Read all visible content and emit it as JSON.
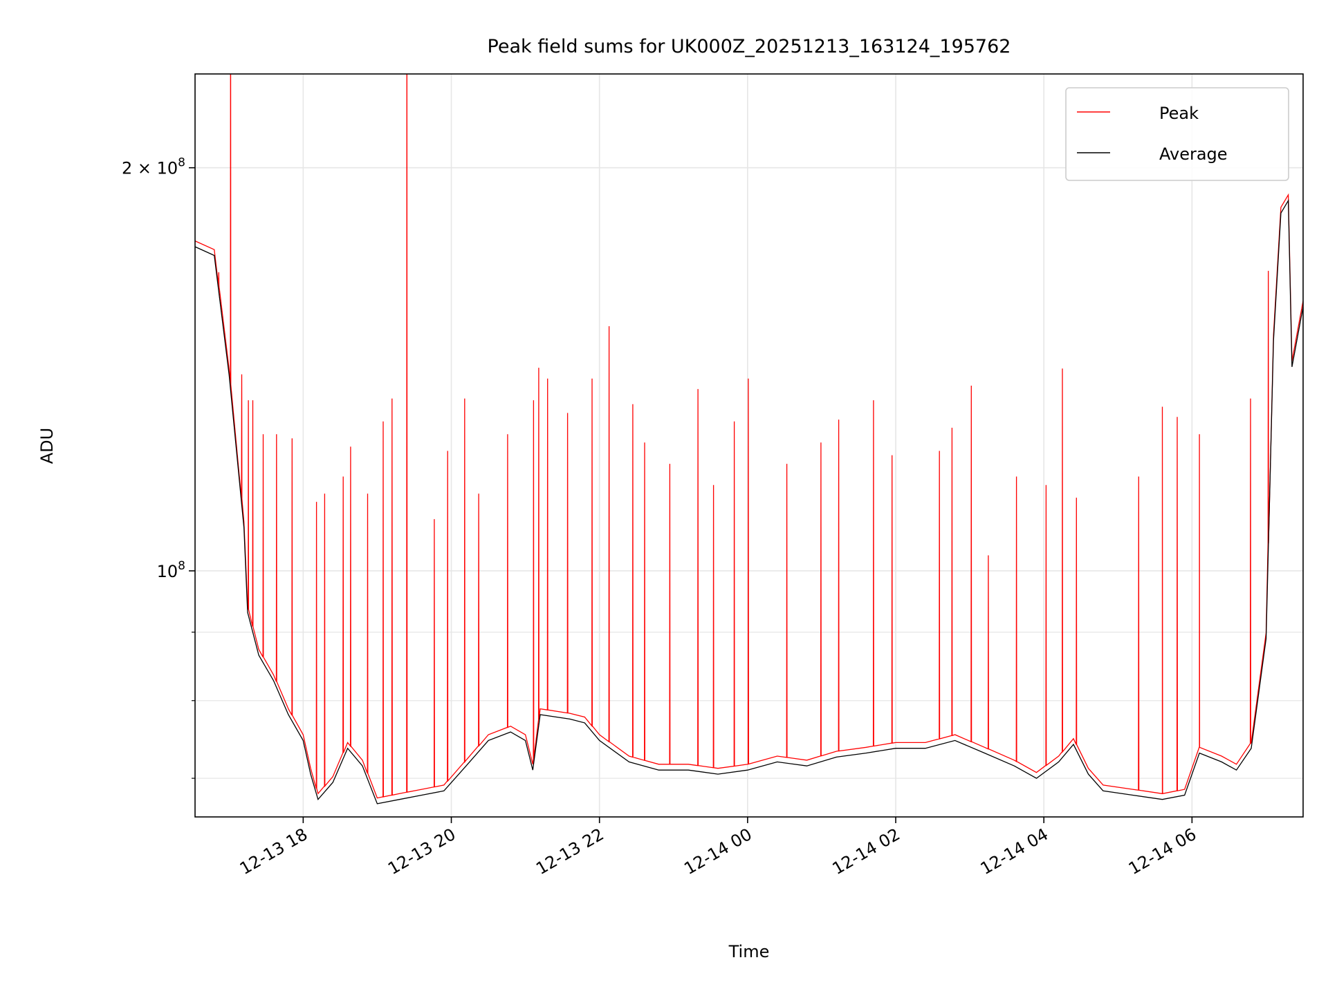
{
  "chart_data": {
    "type": "line",
    "title": "Peak field sums for UK000Z_20251213_163124_195762",
    "xlabel": "Time",
    "ylabel": "ADU",
    "yscale": "log",
    "x_units": "hours since 12-13 00:00",
    "xlim": [
      16.54,
      31.5
    ],
    "ylim": [
      65500000,
      235000000
    ],
    "grid": true,
    "legend_placement": "top-right",
    "x_ticks": [
      {
        "value": 18,
        "label": "12-13 18"
      },
      {
        "value": 20,
        "label": "12-13 20"
      },
      {
        "value": 22,
        "label": "12-13 22"
      },
      {
        "value": 24,
        "label": "12-14 00"
      },
      {
        "value": 26,
        "label": "12-14 02"
      },
      {
        "value": 28,
        "label": "12-14 04"
      },
      {
        "value": 30,
        "label": "12-14 06"
      }
    ],
    "y_major_ticks": [
      {
        "value": 100000000,
        "base": "10",
        "exp": "8",
        "mant": ""
      },
      {
        "value": 200000000,
        "base": "10",
        "exp": "8",
        "mant": "2 × "
      }
    ],
    "y_minor_ticks": [
      70000000,
      80000000,
      90000000
    ],
    "series": [
      {
        "name": "Peak",
        "color": "#ff0000",
        "spikes": [
          [
            16.86,
            167100000
          ],
          [
            17.02,
            300000000
          ],
          [
            17.17,
            140200000
          ],
          [
            17.26,
            134100000
          ],
          [
            17.32,
            134100000
          ],
          [
            17.46,
            126500000
          ],
          [
            17.64,
            126500000
          ],
          [
            17.85,
            125600000
          ],
          [
            18.18,
            112600000
          ],
          [
            18.29,
            114200000
          ],
          [
            18.54,
            117600000
          ],
          [
            18.64,
            123800000
          ],
          [
            18.87,
            114200000
          ],
          [
            19.08,
            129300000
          ],
          [
            19.2,
            134500000
          ],
          [
            19.4,
            300000000
          ],
          [
            19.77,
            109300000
          ],
          [
            19.95,
            122900000
          ],
          [
            20.18,
            134500000
          ],
          [
            20.37,
            114200000
          ],
          [
            20.76,
            126500000
          ],
          [
            21.11,
            134100000
          ],
          [
            21.18,
            141800000
          ],
          [
            21.3,
            139200000
          ],
          [
            21.57,
            131200000
          ],
          [
            21.9,
            139200000
          ],
          [
            22.13,
            152300000
          ],
          [
            22.45,
            133200000
          ],
          [
            22.61,
            124700000
          ],
          [
            22.95,
            120200000
          ],
          [
            23.33,
            136700000
          ],
          [
            23.54,
            115900000
          ],
          [
            23.82,
            129300000
          ],
          [
            24.01,
            139200000
          ],
          [
            24.53,
            120200000
          ],
          [
            24.99,
            124700000
          ],
          [
            25.23,
            129700000
          ],
          [
            25.7,
            134100000
          ],
          [
            25.95,
            122000000
          ],
          [
            26.59,
            122900000
          ],
          [
            26.76,
            127900000
          ],
          [
            27.02,
            137500000
          ],
          [
            27.25,
            102700000
          ],
          [
            27.63,
            117600000
          ],
          [
            28.03,
            115900000
          ],
          [
            28.25,
            141600000
          ],
          [
            28.44,
            113400000
          ],
          [
            29.28,
            117600000
          ],
          [
            29.6,
            132600000
          ],
          [
            29.8,
            130300000
          ],
          [
            30.1,
            126500000
          ],
          [
            30.79,
            134500000
          ],
          [
            31.03,
            167500000
          ]
        ]
      },
      {
        "name": "Average",
        "color": "#000000",
        "points": [
          [
            16.54,
            174600000
          ],
          [
            16.8,
            172000000
          ],
          [
            17.0,
            140000000
          ],
          [
            17.2,
            107700000
          ],
          [
            17.25,
            93100000
          ],
          [
            17.4,
            86500000
          ],
          [
            17.6,
            82800000
          ],
          [
            17.8,
            78100000
          ],
          [
            18.0,
            74700000
          ],
          [
            18.1,
            70500000
          ],
          [
            18.2,
            67500000
          ],
          [
            18.4,
            69500000
          ],
          [
            18.6,
            73700000
          ],
          [
            18.8,
            71500000
          ],
          [
            19.0,
            67000000
          ],
          [
            19.3,
            67500000
          ],
          [
            19.6,
            68000000
          ],
          [
            19.9,
            68500000
          ],
          [
            20.2,
            71500000
          ],
          [
            20.5,
            74700000
          ],
          [
            20.8,
            75800000
          ],
          [
            21.0,
            74700000
          ],
          [
            21.1,
            71000000
          ],
          [
            21.2,
            78100000
          ],
          [
            21.6,
            77500000
          ],
          [
            21.8,
            77000000
          ],
          [
            22.0,
            74700000
          ],
          [
            22.4,
            72000000
          ],
          [
            22.8,
            71000000
          ],
          [
            23.2,
            71000000
          ],
          [
            23.6,
            70500000
          ],
          [
            24.0,
            71000000
          ],
          [
            24.4,
            72000000
          ],
          [
            24.8,
            71500000
          ],
          [
            25.2,
            72600000
          ],
          [
            25.6,
            73100000
          ],
          [
            26.0,
            73700000
          ],
          [
            26.4,
            73700000
          ],
          [
            26.8,
            74700000
          ],
          [
            27.2,
            73100000
          ],
          [
            27.6,
            71500000
          ],
          [
            27.9,
            70000000
          ],
          [
            28.2,
            72000000
          ],
          [
            28.4,
            74200000
          ],
          [
            28.6,
            70500000
          ],
          [
            28.8,
            68500000
          ],
          [
            29.2,
            68000000
          ],
          [
            29.6,
            67500000
          ],
          [
            29.9,
            68000000
          ],
          [
            30.1,
            73100000
          ],
          [
            30.4,
            72000000
          ],
          [
            30.6,
            71000000
          ],
          [
            30.8,
            73700000
          ],
          [
            31.0,
            89000000
          ],
          [
            31.1,
            148600000
          ],
          [
            31.2,
            185000000
          ],
          [
            31.3,
            189000000
          ],
          [
            31.35,
            142000000
          ],
          [
            31.5,
            157500000
          ]
        ]
      }
    ]
  }
}
